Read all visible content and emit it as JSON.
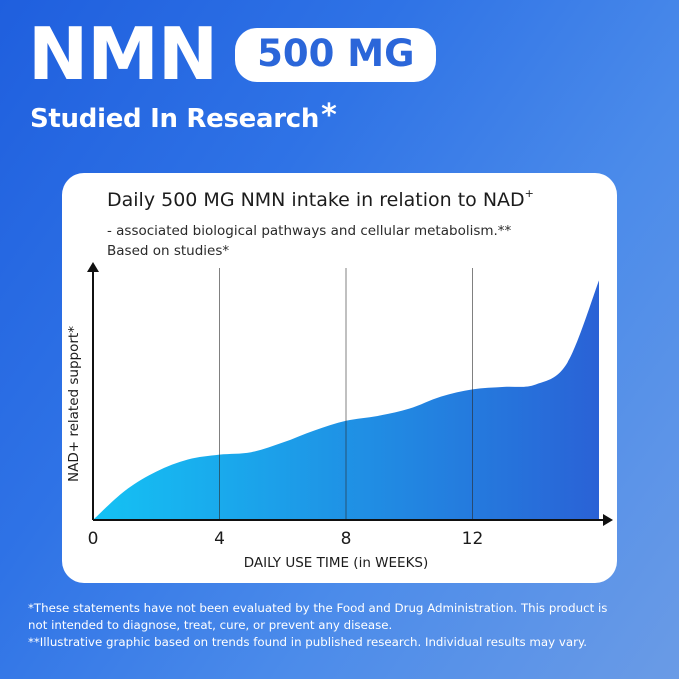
{
  "header": {
    "title": "NMN",
    "dose": "500 MG",
    "subtitle": "Studied In Research",
    "subtitle_mark": "*"
  },
  "card": {
    "title": "Daily 500 MG NMN intake in relation to NAD",
    "title_sup": "+",
    "line1": "- associated biological pathways and cellular metabolism.**",
    "line2": "Based on studies*"
  },
  "chart_data": {
    "type": "area",
    "xlabel": "DAILY USE TIME (in WEEKS)",
    "ylabel": "NAD+ related support*",
    "ticks": [
      0,
      4,
      8,
      12
    ],
    "xlim": [
      0,
      16
    ],
    "ylim": [
      0,
      100
    ],
    "grid": "vertical lines at ticks",
    "x": [
      0,
      1,
      2,
      3,
      4,
      5,
      6,
      7,
      8,
      9,
      10,
      11,
      12,
      13,
      14,
      15,
      16
    ],
    "y": [
      0,
      12,
      20,
      25,
      27,
      28,
      32,
      37,
      41,
      43,
      46,
      51,
      54,
      55,
      56,
      65,
      99
    ],
    "fill": {
      "start": "#14c2f4",
      "end": "#2a62d6"
    }
  },
  "footnotes": [
    "*These statements have not been evaluated by the Food and Drug Administration. This product is",
    "not intended to diagnose, treat, cure, or prevent any disease.",
    "**Illustrative graphic based on trends found in published research. Individual results may vary."
  ]
}
